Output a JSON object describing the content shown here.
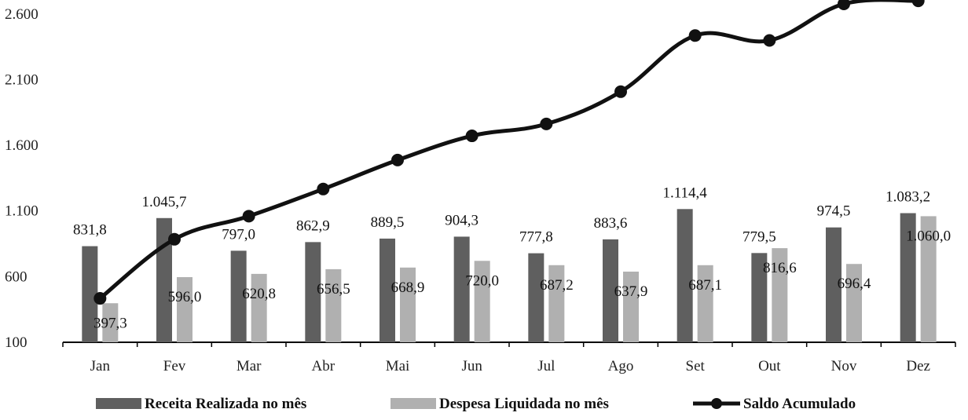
{
  "chart_data": {
    "type": "bar",
    "categories": [
      "Jan",
      "Fev",
      "Mar",
      "Abr",
      "Mai",
      "Jun",
      "Jul",
      "Ago",
      "Set",
      "Out",
      "Nov",
      "Dez"
    ],
    "series": [
      {
        "name": "Receita Realizada no mês",
        "kind": "bar",
        "color": "#5f5f5f",
        "values": [
          831.8,
          1045.7,
          797.0,
          862.9,
          889.5,
          904.3,
          777.8,
          883.6,
          1114.4,
          779.5,
          974.5,
          1083.2
        ],
        "labels": [
          "831,8",
          "1.045,7",
          "797,0",
          "862,9",
          "889,5",
          "904,3",
          "777,8",
          "883,6",
          "1.114,4",
          "779,5",
          "974,5",
          "1.083,2"
        ]
      },
      {
        "name": "Despesa Liquidada no mês",
        "kind": "bar",
        "color": "#b0b0b0",
        "values": [
          397.3,
          596.0,
          620.8,
          656.5,
          668.9,
          720.0,
          687.2,
          637.9,
          687.1,
          816.6,
          696.4,
          1060.0
        ],
        "labels": [
          "397,3",
          "596,0",
          "620,8",
          "656,5",
          "668,9",
          "720,0",
          "687,2",
          "637,9",
          "687,1",
          "816,6",
          "696,4",
          "1.060,0"
        ]
      },
      {
        "name": "Saldo Acumulado",
        "kind": "line",
        "color": "#111111",
        "values": [
          434.5,
          884.2,
          1060.4,
          1266.8,
          1487.4,
          1671.7,
          1762.3,
          2008.0,
          2435.3,
          2398.2,
          2676.3,
          2699.5
        ]
      }
    ],
    "yticks": [
      {
        "v": 100,
        "t": "100"
      },
      {
        "v": 600,
        "t": "600"
      },
      {
        "v": 1100,
        "t": "1.100"
      },
      {
        "v": 1600,
        "t": "1.600"
      },
      {
        "v": 2100,
        "t": "2.100"
      },
      {
        "v": 2600,
        "t": "2.600"
      }
    ],
    "ylim": [
      100,
      2700
    ],
    "grid": false,
    "legend_position": "bottom"
  }
}
